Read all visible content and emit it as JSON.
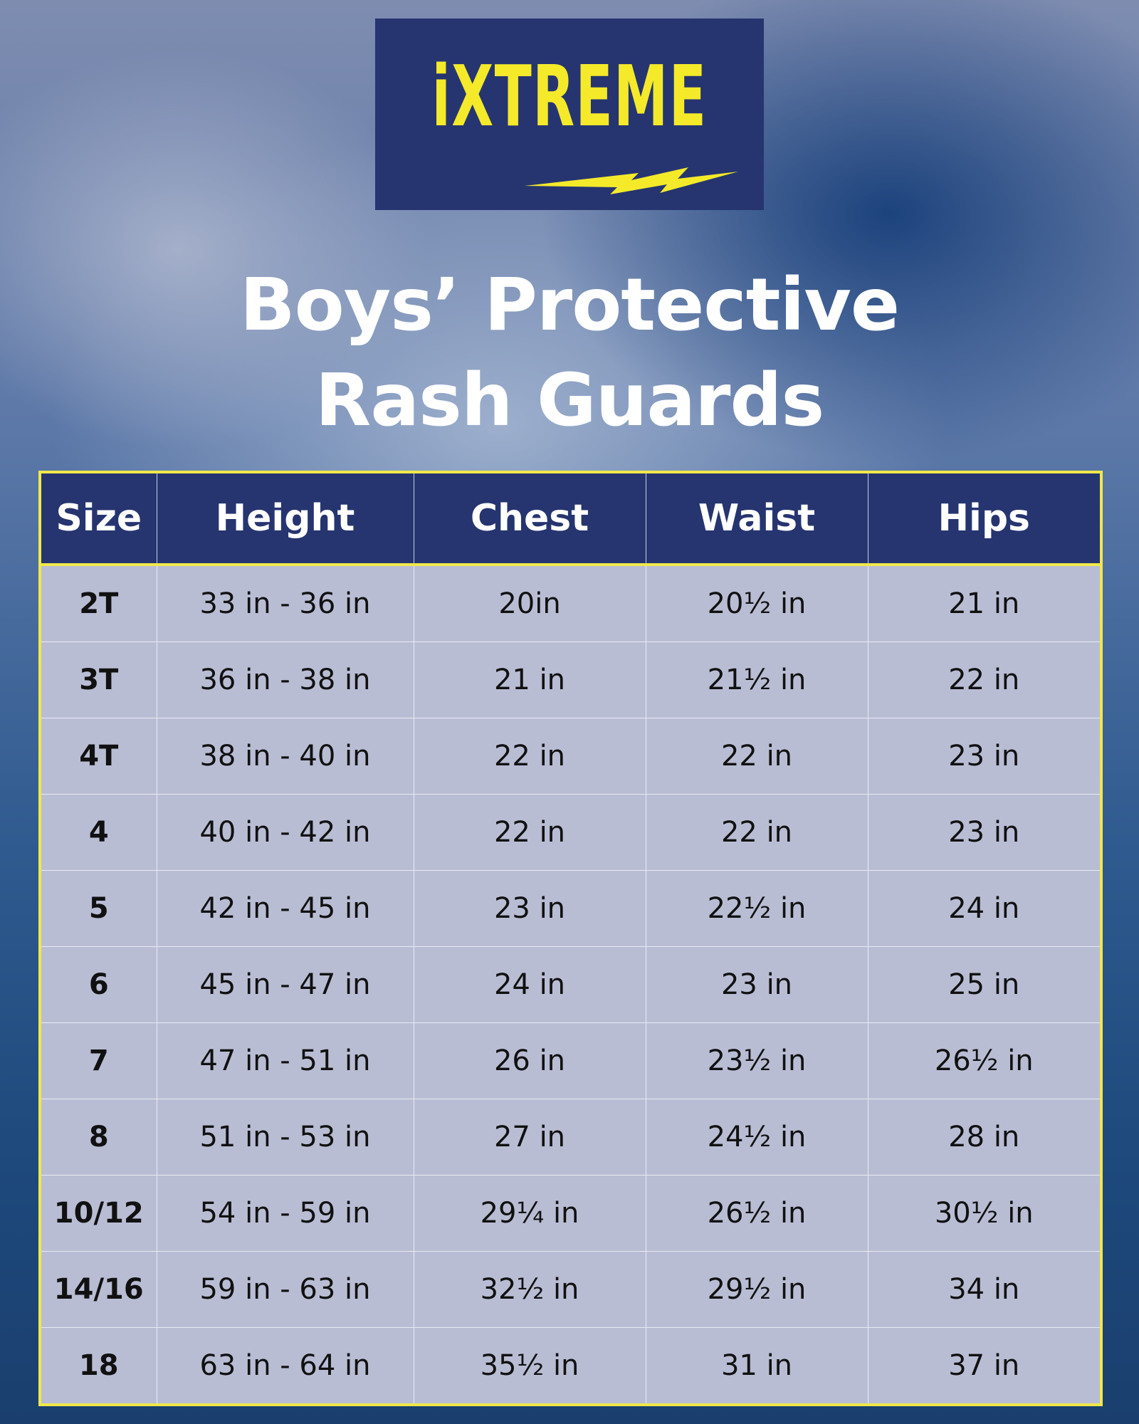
{
  "logo": {
    "text": "iXTREME"
  },
  "title": {
    "lines": [
      "Boys’ Protective",
      "Rash Guards"
    ]
  },
  "table": {
    "header": [
      "Size",
      "Height",
      "Chest",
      "Waist",
      "Hips"
    ],
    "rows": [
      [
        "2T",
        "33 in - 36 in",
        "20in",
        "20½ in",
        "21 in"
      ],
      [
        "3T",
        "36 in - 38 in",
        "21 in",
        "21½ in",
        "22 in"
      ],
      [
        "4T",
        "38 in - 40 in",
        "22 in",
        "22 in",
        "23 in"
      ],
      [
        "4",
        "40 in - 42 in",
        "22 in",
        "22 in",
        "23 in"
      ],
      [
        "5",
        "42 in - 45 in",
        "23 in",
        "22½ in",
        "24 in"
      ],
      [
        "6",
        "45 in - 47 in",
        "24 in",
        "23 in",
        "25 in"
      ],
      [
        "7",
        "47 in - 51 in",
        "26 in",
        "23½ in",
        "26½ in"
      ],
      [
        "8",
        "51 in - 53 in",
        "27 in",
        "24½ in",
        "28 in"
      ],
      [
        "10/12",
        "54 in - 59 in",
        "29¼ in",
        "26½ in",
        "30½ in"
      ],
      [
        "14/16",
        "59 in - 63 in",
        "32½ in",
        "29½ in",
        "34 in"
      ],
      [
        "18",
        "63 in - 64 in",
        "35½ in",
        "31 in",
        "37 in"
      ]
    ]
  }
}
